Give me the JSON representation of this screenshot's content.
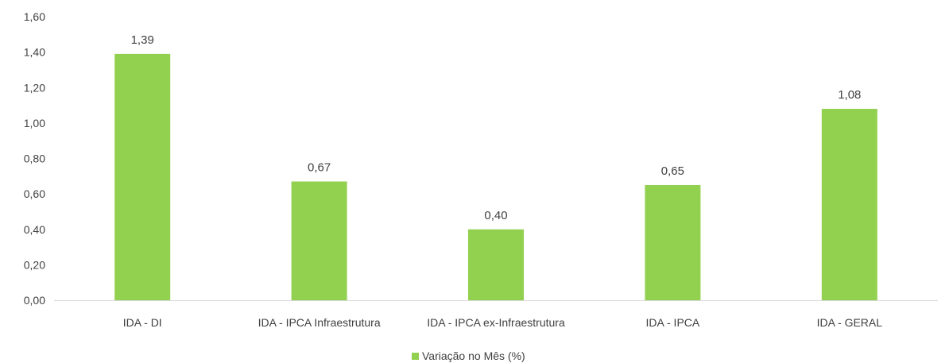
{
  "chart_data": {
    "type": "bar",
    "categories": [
      "IDA - DI",
      "IDA - IPCA Infraestrutura",
      "IDA - IPCA ex-Infraestrutura",
      "IDA - IPCA",
      "IDA - GERAL"
    ],
    "series": [
      {
        "name": "Variação no Mês (%)",
        "values": [
          1.39,
          0.67,
          0.4,
          0.65,
          1.08
        ],
        "value_labels": [
          "1,39",
          "0,67",
          "0,40",
          "0,65",
          "1,08"
        ],
        "color": "#92d050"
      }
    ],
    "ylim": [
      0,
      1.6
    ],
    "yticks": [
      0,
      0.2,
      0.4,
      0.6,
      0.8,
      1.0,
      1.2,
      1.4,
      1.6
    ],
    "ytick_labels": [
      "0,00",
      "0,20",
      "0,40",
      "0,60",
      "0,80",
      "1,00",
      "1,20",
      "1,40",
      "1,60"
    ],
    "grid": false,
    "legend": "bottom",
    "axis_color": "#d9d9d9"
  }
}
